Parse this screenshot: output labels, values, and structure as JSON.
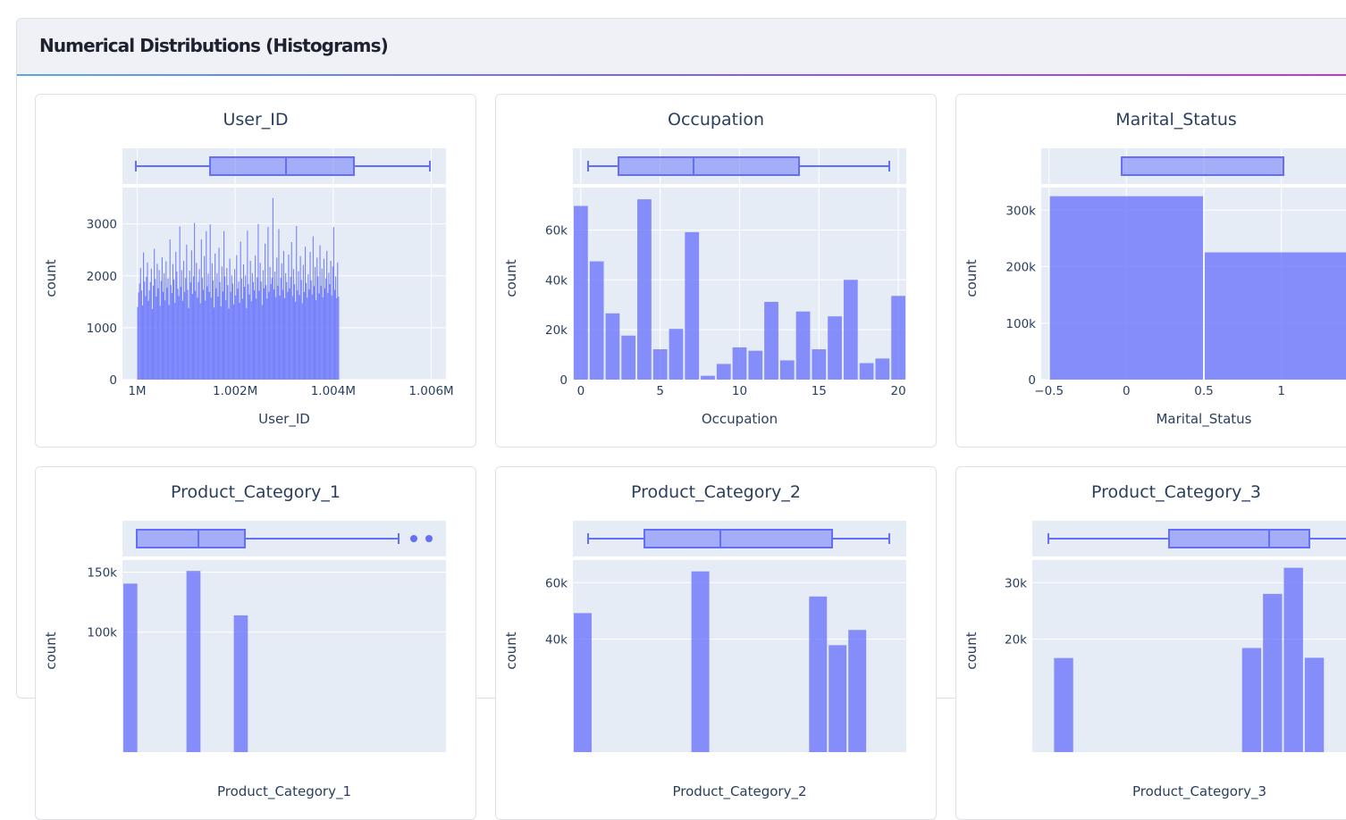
{
  "section": {
    "title": "Numerical Distributions (Histograms)"
  },
  "colors": {
    "bar": "#636efa",
    "plot_bg": "#e5ecf6",
    "grid": "#ffffff",
    "text": "#2a3f5f"
  },
  "chart_data": [
    {
      "type": "bar",
      "title": "User_ID",
      "xlabel": "User_ID",
      "ylabel": "count",
      "xlim": [
        999700,
        1006300
      ],
      "ylim": [
        0,
        3700
      ],
      "x_ticks": [
        {
          "v": 1000000,
          "label": "1M"
        },
        {
          "v": 1002000,
          "label": "1.002M"
        },
        {
          "v": 1004000,
          "label": "1.004M"
        },
        {
          "v": 1006000,
          "label": "1.006M"
        }
      ],
      "y_ticks": [
        {
          "v": 0,
          "label": "0"
        },
        {
          "v": 1000,
          "label": "1000"
        },
        {
          "v": 2000,
          "label": "2000"
        },
        {
          "v": 3000,
          "label": "3000"
        }
      ],
      "bin_start": 1000000,
      "bin_width": 20,
      "values": [
        1400,
        1680,
        1850,
        2150,
        1720,
        1430,
        2450,
        1890,
        1610,
        1980,
        2260,
        1520,
        1720,
        1880,
        2140,
        1360,
        1810,
        2520,
        1940,
        1600,
        2230,
        1760,
        2110,
        1420,
        1900,
        2360,
        1690,
        2050,
        1530,
        2280,
        1770,
        1950,
        1440,
        2700,
        1820,
        1670,
        2230,
        1930,
        1480,
        2460,
        2080,
        1750,
        1610,
        2950,
        1790,
        2110,
        1520,
        2290,
        1690,
        1960,
        2600,
        1730,
        1380,
        2100,
        1870,
        2490,
        1650,
        1990,
        3020,
        1710,
        2250,
        1580,
        1880,
        2130,
        1470,
        2700,
        1960,
        1730,
        2380,
        1520,
        2860,
        1800,
        2040,
        1690,
        2990,
        1580,
        2240,
        1910,
        1390,
        2430,
        1760,
        2050,
        1600,
        2540,
        1880,
        1410,
        2180,
        1700,
        2860,
        1990,
        1530,
        2150,
        1820,
        1370,
        2330,
        1690,
        2010,
        1850,
        1450,
        2130,
        1620,
        2400,
        1750,
        1890,
        1480,
        2660,
        1950,
        1560,
        2220,
        1790,
        2010,
        1380,
        2870,
        1840,
        1640,
        2290,
        1510,
        2050,
        1880,
        1720,
        2390,
        1560,
        1970,
        3000,
        1710,
        2250,
        1890,
        1440,
        2110,
        1760,
        2620,
        1820,
        1560,
        2940,
        1690,
        2170,
        1840,
        1960,
        3500,
        1740,
        2080,
        1590,
        2350,
        1810,
        2900,
        1620,
        1960,
        2240,
        1730,
        2480,
        1570,
        2050,
        1880,
        1690,
        2410,
        1760,
        1980,
        2650,
        1610,
        2130,
        1840,
        1500,
        2960,
        1720,
        2090,
        1630,
        2380,
        1920,
        1470,
        2210,
        1690,
        2560,
        1860,
        1580,
        2030,
        1740,
        2460,
        1910,
        1640,
        2760,
        1800,
        2170,
        1530,
        2350,
        1990,
        1660,
        2590,
        1810,
        2140,
        1590,
        2330,
        1760,
        1950,
        2480,
        1670,
        2060,
        1840,
        2290,
        1620,
        2180,
        2940,
        1730,
        1990,
        1570,
        2260,
        1600
      ]
    },
    {
      "type": "bar",
      "title": "Occupation",
      "xlabel": "Occupation",
      "ylabel": "count",
      "xlim": [
        -0.5,
        20.5
      ],
      "ylim": [
        0,
        77000
      ],
      "x_ticks": [
        {
          "v": 0,
          "label": "0"
        },
        {
          "v": 5,
          "label": "5"
        },
        {
          "v": 10,
          "label": "10"
        },
        {
          "v": 15,
          "label": "15"
        },
        {
          "v": 20,
          "label": "20"
        }
      ],
      "y_ticks": [
        {
          "v": 0,
          "label": "0"
        },
        {
          "v": 20000,
          "label": "20k"
        },
        {
          "v": 40000,
          "label": "40k"
        },
        {
          "v": 60000,
          "label": "60k"
        }
      ],
      "bin_start": -0.5,
      "bin_width": 1,
      "values": [
        69638,
        47426,
        26588,
        17650,
        72308,
        12177,
        20355,
        59133,
        1546,
        6291,
        12930,
        11586,
        31179,
        7728,
        27309,
        12165,
        25371,
        40043,
        6622,
        8461,
        33562
      ]
    },
    {
      "type": "bar",
      "title": "Marital_Status",
      "xlabel": "Marital_Status",
      "ylabel": "count",
      "xlim": [
        -0.55,
        1.55
      ],
      "ylim": [
        0,
        340000
      ],
      "x_ticks": [
        {
          "v": -0.5,
          "label": "−0.5"
        },
        {
          "v": 0,
          "label": "0"
        },
        {
          "v": 0.5,
          "label": "0.5"
        },
        {
          "v": 1,
          "label": "1"
        }
      ],
      "y_ticks": [
        {
          "v": 0,
          "label": "0"
        },
        {
          "v": 100000,
          "label": "100k"
        },
        {
          "v": 200000,
          "label": "200k"
        },
        {
          "v": 300000,
          "label": "300k"
        }
      ],
      "bin_start": -0.5,
      "bin_width": 1,
      "values": [
        324731,
        225337
      ]
    },
    {
      "type": "bar",
      "title": "Product_Category_1",
      "xlabel": "Product_Category_1",
      "ylabel": "count",
      "xlim": [
        0.5,
        21
      ],
      "ylim": [
        0,
        160000
      ],
      "x_ticks": [],
      "y_ticks": [
        {
          "v": 100000,
          "label": "100k"
        },
        {
          "v": 150000,
          "label": "150k"
        }
      ],
      "bin_start": 0.5,
      "bin_width": 1,
      "values": [
        140378,
        0,
        0,
        0,
        150933,
        0,
        0,
        113925
      ]
    },
    {
      "type": "bar",
      "title": "Product_Category_2",
      "xlabel": "Product_Category_2",
      "ylabel": "count",
      "xlim": [
        1.5,
        18.5
      ],
      "ylim": [
        0,
        68000
      ],
      "x_ticks": [],
      "y_ticks": [
        {
          "v": 40000,
          "label": "40k"
        },
        {
          "v": 60000,
          "label": "60k"
        }
      ],
      "bin_start": 1.5,
      "bin_width": 1,
      "values": [
        49217,
        0,
        0,
        0,
        0,
        0,
        63991,
        0,
        0,
        0,
        0,
        0,
        55108,
        37855,
        43255
      ]
    },
    {
      "type": "bar",
      "title": "Product_Category_3",
      "xlabel": "Product_Category_3",
      "ylabel": "count",
      "xlim": [
        2.5,
        18.5
      ],
      "ylim": [
        0,
        34000
      ],
      "x_ticks": [],
      "y_ticks": [
        {
          "v": 20000,
          "label": "20k"
        },
        {
          "v": 30000,
          "label": "30k"
        }
      ],
      "bin_start": 2.5,
      "bin_width": 1,
      "values": [
        0,
        16658,
        0,
        0,
        0,
        0,
        0,
        0,
        0,
        0,
        18428,
        28013,
        32636,
        16702
      ]
    }
  ]
}
